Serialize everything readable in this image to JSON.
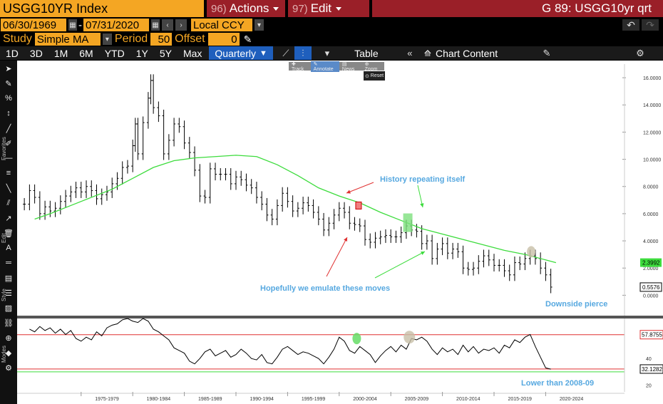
{
  "header": {
    "ticker": "USGG10YR Index",
    "actions_num": "96)",
    "actions_label": "Actions",
    "edit_num": "97)",
    "edit_label": "Edit",
    "page_title": "G 89: USGG10yr qrt"
  },
  "range": {
    "start_date": "06/30/1969",
    "separator": "-",
    "end_date": "07/31/2020",
    "currency": "Local CCY"
  },
  "study": {
    "label": "Study",
    "value": "Simple MA",
    "period_label": "Period",
    "period_value": "50",
    "offset_label": "Offset",
    "offset_value": "0"
  },
  "periods": [
    "1D",
    "3D",
    "1M",
    "6M",
    "YTD",
    "1Y",
    "5Y",
    "Max"
  ],
  "frequency": "Quarterly",
  "toolbar": {
    "table_label": "Table",
    "chart_content_label": "Chart Content"
  },
  "annotate_bar": {
    "items": [
      "Track",
      "Annotate",
      "News",
      "Zoom"
    ],
    "reset": "Reset"
  },
  "side_labels": [
    "Favorites",
    "Edit",
    "Style",
    "Modes"
  ],
  "chart_data": [
    {
      "type": "line",
      "title": "",
      "yaxis_ticks": [
        "16.0000",
        "14.0000",
        "12.0000",
        "10.0000",
        "8.0000",
        "6.0000",
        "4.0000",
        "2.0000",
        "0.0000"
      ],
      "ylim": [
        -1.5,
        17
      ],
      "price_label": "0.5576",
      "ma_label": "2.3992",
      "series": [
        {
          "kind": "ohlc",
          "color": "#000000",
          "x": [
            1969.5,
            1970,
            1970.5,
            1971,
            1971.5,
            1972,
            1972.5,
            1973,
            1973.5,
            1974,
            1974.5,
            1975,
            1975.5,
            1976,
            1976.5,
            1977,
            1977.5,
            1978,
            1978.5,
            1979,
            1979.5,
            1980,
            1980.25,
            1980.5,
            1981,
            1981.5,
            1981.75,
            1982,
            1982.5,
            1983,
            1983.5,
            1984,
            1984.5,
            1985,
            1985.5,
            1986,
            1986.5,
            1987,
            1987.5,
            1988,
            1988.5,
            1989,
            1989.5,
            1990,
            1990.5,
            1991,
            1991.5,
            1992,
            1992.5,
            1993,
            1993.5,
            1994,
            1994.5,
            1995,
            1995.5,
            1996,
            1996.5,
            1997,
            1997.5,
            1998,
            1998.5,
            1999,
            1999.5,
            2000,
            2000.5,
            2001,
            2001.5,
            2002,
            2002.5,
            2003,
            2003.5,
            2004,
            2004.5,
            2005,
            2005.5,
            2006,
            2006.5,
            2007,
            2007.5,
            2008,
            2008.5,
            2009,
            2009.5,
            2010,
            2010.5,
            2011,
            2011.5,
            2012,
            2012.5,
            2013,
            2013.5,
            2014,
            2014.5,
            2015,
            2015.5,
            2016,
            2016.5,
            2017,
            2017.5,
            2018,
            2018.5,
            2019,
            2019.5,
            2020,
            2020.5
          ],
          "values": [
            6.7,
            7.7,
            7.2,
            6.0,
            6.5,
            6.2,
            6.4,
            6.9,
            7.3,
            7.6,
            7.9,
            7.6,
            8.0,
            7.7,
            7.1,
            7.4,
            7.6,
            8.2,
            8.6,
            9.4,
            9.5,
            11.0,
            12.6,
            10.4,
            12.7,
            14.5,
            15.8,
            13.8,
            13.2,
            10.4,
            11.4,
            12.6,
            12.4,
            11.2,
            10.5,
            9.2,
            7.3,
            7.2,
            9.3,
            8.9,
            8.9,
            8.9,
            8.2,
            8.7,
            8.5,
            8.1,
            7.9,
            7.2,
            6.7,
            5.9,
            5.6,
            6.6,
            7.5,
            6.9,
            6.2,
            6.4,
            6.8,
            6.6,
            6.1,
            5.6,
            4.8,
            5.3,
            5.9,
            6.4,
            6.1,
            5.3,
            5.2,
            5.1,
            4.1,
            3.9,
            4.2,
            4.3,
            4.4,
            4.3,
            4.3,
            4.6,
            5.1,
            4.8,
            4.7,
            3.8,
            4.0,
            2.7,
            3.4,
            3.8,
            3.1,
            3.4,
            3.2,
            2.0,
            1.9,
            2.0,
            2.5,
            2.9,
            2.6,
            2.2,
            2.2,
            1.8,
            1.5,
            2.4,
            2.3,
            2.7,
            2.9,
            2.7,
            2.0,
            1.5,
            0.6
          ]
        },
        {
          "kind": "line",
          "name": "",
          "color": "#3ddc3d",
          "x": [
            1970.5,
            1972,
            1974,
            1976,
            1978,
            1980,
            1982,
            1984,
            1986,
            1988,
            1990,
            1992,
            1994,
            1996,
            1998,
            2000,
            2002,
            2004,
            2006,
            2008,
            2010,
            2012,
            2014,
            2016,
            2018,
            2020,
            2021
          ],
          "values": [
            5.6,
            6.0,
            6.6,
            7.2,
            7.8,
            8.6,
            9.4,
            9.9,
            10.1,
            10.2,
            10.3,
            10.2,
            9.6,
            8.8,
            7.9,
            7.3,
            6.8,
            6.1,
            5.5,
            4.9,
            4.5,
            4.1,
            3.7,
            3.3,
            3.0,
            2.6,
            2.4
          ]
        }
      ]
    },
    {
      "type": "line",
      "title": "",
      "yaxis_ticks": [
        "40",
        "20"
      ],
      "ylim": [
        15,
        70
      ],
      "upper_label": "57.8755",
      "lower_label": "32.1282",
      "upper_line": 57.8755,
      "lower_line": 32.1282,
      "series": [
        {
          "kind": "line",
          "name": "",
          "color": "#000000",
          "x": [
            1970,
            1970.5,
            1971,
            1971.5,
            1972,
            1972.5,
            1973,
            1973.5,
            1974,
            1974.5,
            1975,
            1975.5,
            1976,
            1976.5,
            1977,
            1977.5,
            1978,
            1978.5,
            1979,
            1979.5,
            1980,
            1980.5,
            1981,
            1981.5,
            1982,
            1982.5,
            1983,
            1983.5,
            1984,
            1984.5,
            1985,
            1985.5,
            1986,
            1986.5,
            1987,
            1987.5,
            1988,
            1988.5,
            1989,
            1989.5,
            1990,
            1990.5,
            1991,
            1991.5,
            1992,
            1992.5,
            1993,
            1993.5,
            1994,
            1994.5,
            1995,
            1995.5,
            1996,
            1996.5,
            1997,
            1997.5,
            1998,
            1998.5,
            1999,
            1999.5,
            2000,
            2000.5,
            2001,
            2001.5,
            2002,
            2002.5,
            2003,
            2003.5,
            2004,
            2004.5,
            2005,
            2005.5,
            2006,
            2006.5,
            2007,
            2007.5,
            2008,
            2008.5,
            2009,
            2009.5,
            2010,
            2010.5,
            2011,
            2011.5,
            2012,
            2012.5,
            2013,
            2013.5,
            2014,
            2014.5,
            2015,
            2015.5,
            2016,
            2016.5,
            2017,
            2017.5,
            2018,
            2018.5,
            2019,
            2019.5,
            2020,
            2020.5
          ],
          "values": [
            62,
            60,
            64,
            61,
            63,
            59,
            62,
            58,
            61,
            55,
            53,
            56,
            54,
            60,
            57,
            63,
            65,
            66,
            69,
            70,
            68,
            67,
            70,
            68,
            62,
            60,
            57,
            54,
            48,
            46,
            44,
            38,
            36,
            40,
            45,
            47,
            42,
            44,
            46,
            41,
            43,
            47,
            44,
            40,
            39,
            43,
            37,
            36,
            41,
            47,
            49,
            46,
            43,
            45,
            44,
            42,
            40,
            36,
            41,
            47,
            56,
            53,
            46,
            44,
            49,
            46,
            43,
            37,
            42,
            46,
            49,
            45,
            50,
            47,
            55,
            54,
            56,
            53,
            47,
            43,
            48,
            45,
            47,
            43,
            50,
            45,
            49,
            44,
            47,
            46,
            48,
            44,
            50,
            48,
            54,
            52,
            56,
            58,
            49,
            41,
            33,
            32
          ]
        }
      ]
    }
  ],
  "annotations": {
    "history": "History repeating itself",
    "emulate": "Hopefully we emulate these moves",
    "downside": "Downside pierce",
    "lower": "Lower than 2008-09"
  },
  "x_ticks": [
    "1975-1979",
    "1980-1984",
    "1985-1989",
    "1990-1994",
    "1995-1999",
    "2000-2004",
    "2005-2009",
    "2010-2014",
    "2015-2019",
    "2020-2024"
  ]
}
